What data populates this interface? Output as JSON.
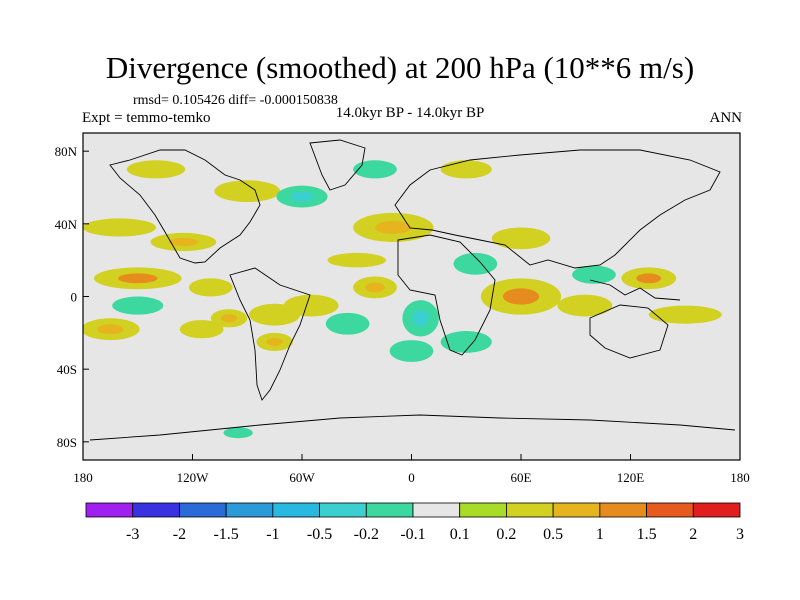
{
  "chart_data": {
    "type": "heatmap",
    "title": "Divergence (smoothed) at 200 hPa (10**6 m/s)",
    "stats_line": "rmsd= 0.105426 diff= -0.000150838",
    "left_label": "Expt = temmo-temko",
    "center_label": "14.0kyr BP - 14.0kyr BP",
    "right_label": "ANN",
    "x_ticks": [
      {
        "value": -180,
        "label": "180"
      },
      {
        "value": -120,
        "label": "120W"
      },
      {
        "value": -60,
        "label": "60W"
      },
      {
        "value": 0,
        "label": "0"
      },
      {
        "value": 60,
        "label": "60E"
      },
      {
        "value": 120,
        "label": "120E"
      },
      {
        "value": 180,
        "label": "180"
      }
    ],
    "y_ticks": [
      {
        "value": 80,
        "label": "80N"
      },
      {
        "value": 40,
        "label": "40N"
      },
      {
        "value": 0,
        "label": "0"
      },
      {
        "value": -40,
        "label": "40S"
      },
      {
        "value": -80,
        "label": "80S"
      }
    ],
    "xlim": [
      -180,
      180
    ],
    "ylim": [
      -90,
      90
    ],
    "colorbar": {
      "levels": [
        "-3",
        "-2",
        "-1.5",
        "-1",
        "-0.5",
        "-0.2",
        "-0.1",
        "0.1",
        "0.2",
        "0.5",
        "1",
        "1.5",
        "2",
        "3"
      ],
      "colors": [
        "#a020f0",
        "#3a32e0",
        "#2b6bd8",
        "#2a9ad8",
        "#28b8e0",
        "#3ccfd0",
        "#3cd8a0",
        "#e6e6e6",
        "#a8dc28",
        "#d2d020",
        "#e6b41e",
        "#e68c1e",
        "#e65a1e",
        "#e01e1e"
      ]
    },
    "anomalies": [
      {
        "lon": -150,
        "lat": 10,
        "rx": 24,
        "ry": 6,
        "level": 1
      },
      {
        "lon": -165,
        "lat": -18,
        "rx": 16,
        "ry": 6,
        "level": 0.5
      },
      {
        "lon": -160,
        "lat": 38,
        "rx": 20,
        "ry": 5,
        "level": 0.2
      },
      {
        "lon": -125,
        "lat": 30,
        "rx": 18,
        "ry": 5,
        "level": 0.5
      },
      {
        "lon": -110,
        "lat": 5,
        "rx": 12,
        "ry": 5,
        "level": 0.2
      },
      {
        "lon": -100,
        "lat": -12,
        "rx": 10,
        "ry": 5,
        "level": 0.5
      },
      {
        "lon": -115,
        "lat": -18,
        "rx": 12,
        "ry": 5,
        "level": 0.2
      },
      {
        "lon": -75,
        "lat": -10,
        "rx": 14,
        "ry": 6,
        "level": 0.2
      },
      {
        "lon": -75,
        "lat": -25,
        "rx": 10,
        "ry": 5,
        "level": 0.5
      },
      {
        "lon": -55,
        "lat": -5,
        "rx": 15,
        "ry": 6,
        "level": 0.2
      },
      {
        "lon": -20,
        "lat": 5,
        "rx": 12,
        "ry": 6,
        "level": 0.5
      },
      {
        "lon": -30,
        "lat": 20,
        "rx": 16,
        "ry": 4,
        "level": 0.2
      },
      {
        "lon": 60,
        "lat": 0,
        "rx": 22,
        "ry": 10,
        "level": 1
      },
      {
        "lon": 95,
        "lat": -5,
        "rx": 15,
        "ry": 6,
        "level": 0.2
      },
      {
        "lon": 130,
        "lat": 10,
        "rx": 15,
        "ry": 6,
        "level": 1
      },
      {
        "lon": 150,
        "lat": -10,
        "rx": 20,
        "ry": 5,
        "level": 0.2
      },
      {
        "lon": -10,
        "lat": 38,
        "rx": 22,
        "ry": 8,
        "level": 0.5
      },
      {
        "lon": 60,
        "lat": 32,
        "rx": 16,
        "ry": 6,
        "level": 0.2
      },
      {
        "lon": -90,
        "lat": 58,
        "rx": 18,
        "ry": 6,
        "level": 0.2
      },
      {
        "lon": -140,
        "lat": 70,
        "rx": 16,
        "ry": 5,
        "level": 0.2
      },
      {
        "lon": 30,
        "lat": 70,
        "rx": 14,
        "ry": 5,
        "level": 0.2
      },
      {
        "lon": 5,
        "lat": -12,
        "rx": 10,
        "ry": 10,
        "level": -0.5
      },
      {
        "lon": 35,
        "lat": 18,
        "rx": 12,
        "ry": 6,
        "level": -0.2
      },
      {
        "lon": -35,
        "lat": -15,
        "rx": 12,
        "ry": 6,
        "level": -0.2
      },
      {
        "lon": -60,
        "lat": 55,
        "rx": 14,
        "ry": 6,
        "level": -0.5
      },
      {
        "lon": -20,
        "lat": 70,
        "rx": 12,
        "ry": 5,
        "level": -0.2
      },
      {
        "lon": -150,
        "lat": -5,
        "rx": 14,
        "ry": 5,
        "level": -0.2
      },
      {
        "lon": 100,
        "lat": 12,
        "rx": 12,
        "ry": 5,
        "level": -0.2
      },
      {
        "lon": 0,
        "lat": -30,
        "rx": 12,
        "ry": 6,
        "level": -0.2
      },
      {
        "lon": 30,
        "lat": -25,
        "rx": 14,
        "ry": 6,
        "level": -0.2
      },
      {
        "lon": -95,
        "lat": -75,
        "rx": 8,
        "ry": 3,
        "level": -0.2
      }
    ]
  }
}
